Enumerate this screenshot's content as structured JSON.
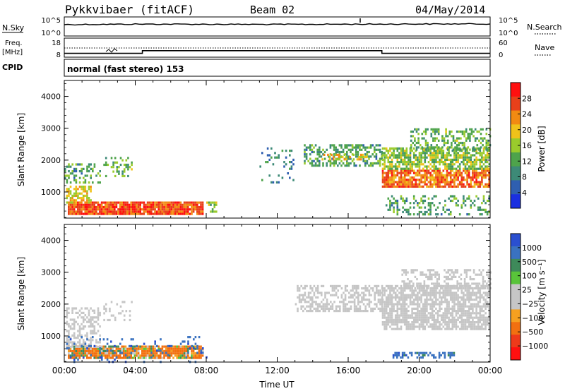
{
  "header": {
    "station": "Pykkvibaer (fitACF)",
    "beam": "Beam 02",
    "date": "04/May/2014"
  },
  "panels": {
    "nsky": {
      "left_label": "N.Sky",
      "ticks_left": [
        "10^5",
        "10^0"
      ],
      "right_label": "N.Search",
      "ticks_right": [
        "10^5",
        "10^0"
      ]
    },
    "freq": {
      "label_line1": "Freq.",
      "label_line2": "[MHz]",
      "ticks_left": [
        "18",
        "8"
      ],
      "right_label": "Nave",
      "ticks_right": [
        "60",
        "0"
      ]
    },
    "cpid": {
      "label": "CPID",
      "text": "normal (fast stereo) 153"
    }
  },
  "colors": {
    "power_scale": [
      "#1a2fe0",
      "#2f5fb0",
      "#3d8a77",
      "#4ea34b",
      "#9acb2c",
      "#f0c21a",
      "#f28a12",
      "#e8401a",
      "#ff1010"
    ],
    "velocity_scale": [
      "#2a4fd0",
      "#3a72c0",
      "#3e8a5a",
      "#59c43a",
      "#c6c6c6",
      "#c6c6c6",
      "#f6a020",
      "#f27010",
      "#ee3a1a",
      "#ff1010"
    ],
    "nsky_line": "#000000",
    "grid": "#000000"
  },
  "chart_data": [
    {
      "type": "line",
      "name": "nsky-panel",
      "ylabel": "N.Sky",
      "y2label": "N.Search",
      "yscale": "log",
      "ylim": [
        1,
        100000
      ],
      "x": [
        "00:00",
        "04:00",
        "08:00",
        "12:00",
        "16:00",
        "20:00",
        "00:00"
      ],
      "series": [
        {
          "name": "N.Sky",
          "values": [
            1000,
            1300,
            1200,
            1100,
            1250,
            1400,
            1500
          ]
        },
        {
          "name": "N.Search",
          "values": [
            800,
            900,
            850,
            900,
            950,
            1000,
            1050
          ]
        }
      ]
    },
    {
      "type": "line",
      "name": "freq-panel",
      "ylabel": "Freq. [MHz]",
      "ylim": [
        8,
        18
      ],
      "y2label": "Nave",
      "y2lim": [
        0,
        60
      ],
      "x_hours": [
        0,
        4.4,
        4.4,
        17.9,
        17.9,
        24
      ],
      "series": [
        {
          "name": "Freq",
          "values": [
            10,
            10,
            11.4,
            11.4,
            10,
            10
          ]
        },
        {
          "name": "Nave",
          "values": [
            24,
            24,
            24,
            24,
            24,
            24
          ]
        }
      ]
    },
    {
      "type": "heatmap",
      "name": "power-panel",
      "xlabel": "",
      "ylabel": "Slant Range [km]",
      "xlim_hours": [
        0,
        24
      ],
      "ylim": [
        180,
        4500
      ],
      "yticks": [
        1000,
        2000,
        3000,
        4000
      ],
      "colorbar": {
        "label": "Power [dB]",
        "ticks": [
          "4",
          "8",
          "12",
          "16",
          "20",
          "24",
          "28"
        ],
        "range": [
          0,
          30
        ]
      },
      "regions": [
        {
          "t": [
            0.2,
            7.8
          ],
          "range": [
            300,
            700
          ],
          "power": 26,
          "density": 0.95
        },
        {
          "t": [
            0.1,
            1.5
          ],
          "range": [
            650,
            1200
          ],
          "power": 18,
          "density": 0.6
        },
        {
          "t": [
            0.0,
            2.0
          ],
          "range": [
            1300,
            1900
          ],
          "power": 10,
          "density": 0.35
        },
        {
          "t": [
            2.2,
            3.8
          ],
          "range": [
            1500,
            2100
          ],
          "power": 12,
          "density": 0.3
        },
        {
          "t": [
            8.0,
            8.6
          ],
          "range": [
            350,
            700
          ],
          "power": 14,
          "density": 0.5
        },
        {
          "t": [
            13.5,
            17.9
          ],
          "range": [
            1800,
            2500
          ],
          "power": 10,
          "density": 0.5
        },
        {
          "t": [
            14.5,
            17.0
          ],
          "range": [
            2000,
            2200
          ],
          "power": 18,
          "density": 0.5
        },
        {
          "t": [
            11.0,
            13.0
          ],
          "range": [
            1300,
            2400
          ],
          "power": 6,
          "density": 0.15
        },
        {
          "t": [
            17.9,
            24.0
          ],
          "range": [
            1200,
            1700
          ],
          "power": 24,
          "density": 0.8
        },
        {
          "t": [
            17.9,
            24.0
          ],
          "range": [
            1700,
            2400
          ],
          "power": 14,
          "density": 0.7
        },
        {
          "t": [
            19.5,
            24.0
          ],
          "range": [
            2300,
            3000
          ],
          "power": 12,
          "density": 0.45
        },
        {
          "t": [
            18.0,
            24.0
          ],
          "range": [
            300,
            900
          ],
          "power": 10,
          "density": 0.3
        }
      ]
    },
    {
      "type": "heatmap",
      "name": "velocity-panel",
      "xlabel": "Time UT",
      "ylabel": "Slant Range [km]",
      "xlim_hours": [
        0,
        24
      ],
      "ylim": [
        180,
        4500
      ],
      "yticks": [
        1000,
        2000,
        3000,
        4000
      ],
      "xticks": [
        "00:00",
        "04:00",
        "08:00",
        "12:00",
        "16:00",
        "20:00",
        "00:00"
      ],
      "colorbar": {
        "label": "Velocity [m s⁻¹]",
        "ticks": [
          "1000",
          "500",
          "100",
          "25",
          "−25",
          "−100",
          "−500",
          "−1000"
        ]
      },
      "regions": [
        {
          "t": [
            0.2,
            7.8
          ],
          "range": [
            300,
            700
          ],
          "velocity": -150,
          "density": 0.9
        },
        {
          "t": [
            0.1,
            2.0
          ],
          "range": [
            650,
            1900
          ],
          "velocity": 0,
          "density": 0.45
        },
        {
          "t": [
            2.2,
            3.8
          ],
          "range": [
            1500,
            2100
          ],
          "velocity": 0,
          "density": 0.3
        },
        {
          "t": [
            13.0,
            17.9
          ],
          "range": [
            1800,
            2600
          ],
          "velocity": 0,
          "density": 0.55
        },
        {
          "t": [
            17.9,
            24.0
          ],
          "range": [
            1200,
            2600
          ],
          "velocity": 0,
          "density": 0.75
        },
        {
          "t": [
            19.0,
            24.0
          ],
          "range": [
            2500,
            3100
          ],
          "velocity": 0,
          "density": 0.4
        },
        {
          "t": [
            18.5,
            22.0
          ],
          "range": [
            350,
            500
          ],
          "velocity": 300,
          "density": 0.5
        },
        {
          "t": [
            0.0,
            8.0
          ],
          "range": [
            200,
            1000
          ],
          "velocity": 400,
          "density": 0.1
        }
      ]
    }
  ]
}
